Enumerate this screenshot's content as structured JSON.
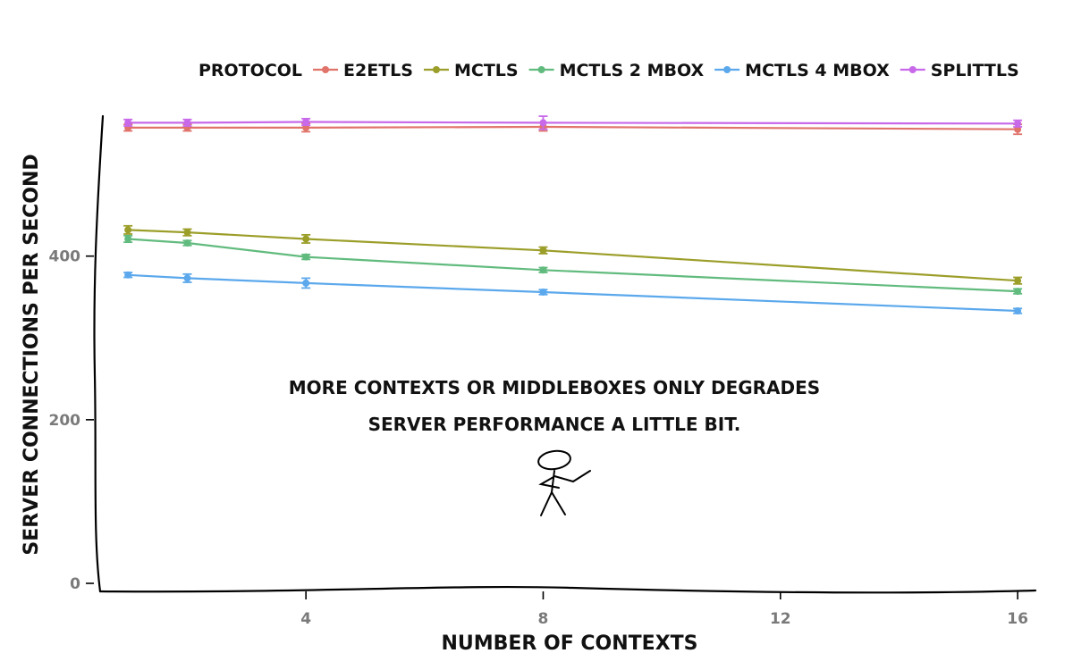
{
  "chart_data": {
    "type": "line",
    "legend": {
      "title": "PROTOCOL",
      "placement": "top"
    },
    "xlabel": "NUMBER OF CONTEXTS",
    "ylabel": "SERVER CONNECTIONS PER SECOND",
    "x": [
      1,
      2,
      4,
      8,
      16
    ],
    "xlim": [
      0.5,
      16.3
    ],
    "ylim": [
      -12,
      570
    ],
    "xticks": [
      4,
      8,
      12,
      16
    ],
    "yticks": [
      0,
      200,
      400
    ],
    "grid": false,
    "series": [
      {
        "name": "E2ETLS",
        "color": "#E0736A",
        "values": [
          557,
          557,
          557,
          558,
          555
        ],
        "err": [
          4,
          4,
          5,
          5,
          6
        ]
      },
      {
        "name": "MCTLS",
        "color": "#9C9E2A",
        "values": [
          432,
          429,
          421,
          407,
          370
        ],
        "err": [
          5,
          4,
          5,
          4,
          4
        ]
      },
      {
        "name": "MCTLS 2 MBOX",
        "color": "#62BB7E",
        "values": [
          421,
          416,
          399,
          383,
          357
        ],
        "err": [
          4,
          3,
          3,
          3,
          3
        ]
      },
      {
        "name": "MCTLS 4 MBOX",
        "color": "#5BA8EC",
        "values": [
          377,
          373,
          367,
          356,
          333
        ],
        "err": [
          3,
          5,
          6,
          3,
          3
        ]
      },
      {
        "name": "SPLITTLS",
        "color": "#C869EA",
        "values": [
          563,
          563,
          564,
          563,
          562
        ],
        "err": [
          4,
          4,
          4,
          8,
          4
        ]
      }
    ],
    "annotation": {
      "lines": [
        "MORE CONTEXTS OR MIDDLEBOXES ONLY DEGRADES",
        "SERVER PERFORMANCE A LITTLE BIT."
      ]
    }
  }
}
